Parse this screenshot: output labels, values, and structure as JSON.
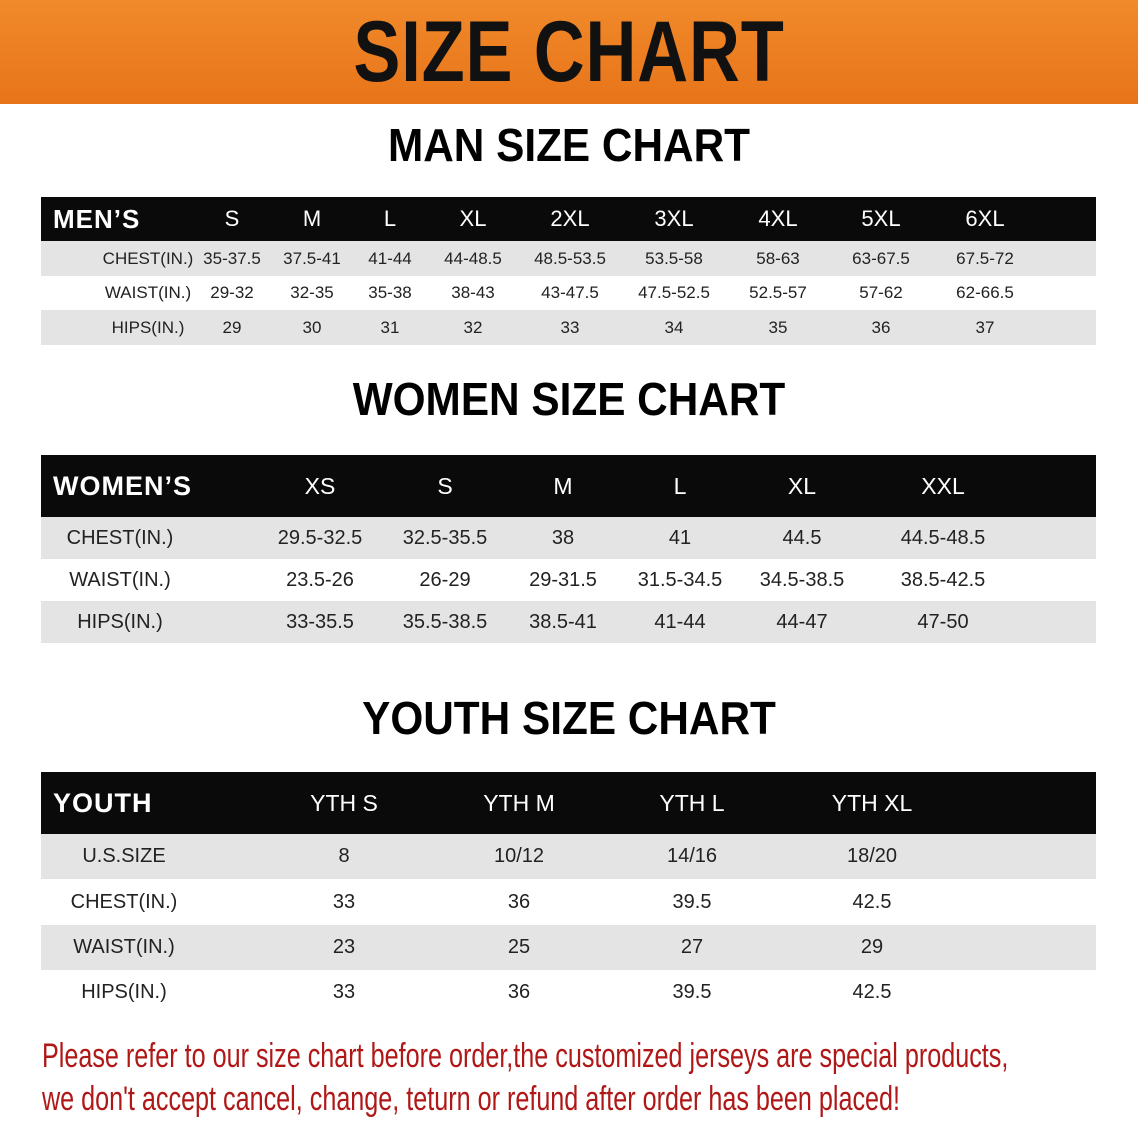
{
  "banner": {
    "title": "SIZE CHART",
    "color": "#e8791f"
  },
  "men": {
    "title": "MAN SIZE CHART",
    "header": [
      "MEN’S",
      "S",
      "M",
      "L",
      "XL",
      "2XL",
      "3XL",
      "4XL",
      "5XL",
      "6XL"
    ],
    "rows": [
      [
        "CHEST(IN.)",
        "35-37.5",
        "37.5-41",
        "41-44",
        "44-48.5",
        "48.5-53.5",
        "53.5-58",
        "58-63",
        "63-67.5",
        "67.5-72"
      ],
      [
        "WAIST(IN.)",
        "29-32",
        "32-35",
        "35-38",
        "38-43",
        "43-47.5",
        "47.5-52.5",
        "52.5-57",
        "57-62",
        "62-66.5"
      ],
      [
        "HIPS(IN.)",
        "29",
        "30",
        "31",
        "32",
        "33",
        "34",
        "35",
        "36",
        "37"
      ]
    ]
  },
  "women": {
    "title": "WOMEN SIZE CHART",
    "header": [
      "WOMEN’S",
      "XS",
      "S",
      "M",
      "L",
      "XL",
      "XXL"
    ],
    "rows": [
      [
        "CHEST(IN.)",
        "29.5-32.5",
        "32.5-35.5",
        "38",
        "41",
        "44.5",
        "44.5-48.5"
      ],
      [
        "WAIST(IN.)",
        "23.5-26",
        "26-29",
        "29-31.5",
        "31.5-34.5",
        "34.5-38.5",
        "38.5-42.5"
      ],
      [
        "HIPS(IN.)",
        "33-35.5",
        "35.5-38.5",
        "38.5-41",
        "41-44",
        "44-47",
        "47-50"
      ]
    ]
  },
  "youth": {
    "title": "YOUTH SIZE CHART",
    "header": [
      "YOUTH",
      "YTH S",
      "YTH M",
      "YTH L",
      "YTH XL"
    ],
    "rows": [
      [
        "U.S.SIZE",
        "8",
        "10/12",
        "14/16",
        "18/20"
      ],
      [
        "CHEST(IN.)",
        "33",
        "36",
        "39.5",
        "42.5"
      ],
      [
        "WAIST(IN.)",
        "23",
        "25",
        "27",
        "29"
      ],
      [
        "HIPS(IN.)",
        "33",
        "36",
        "39.5",
        "42.5"
      ]
    ]
  },
  "note": {
    "line1": "Please refer to our size chart before order,the customized jerseys are special products,",
    "line2": "we don't accept cancel, change, teturn or refund after order has been placed!",
    "color": "#b01818"
  }
}
